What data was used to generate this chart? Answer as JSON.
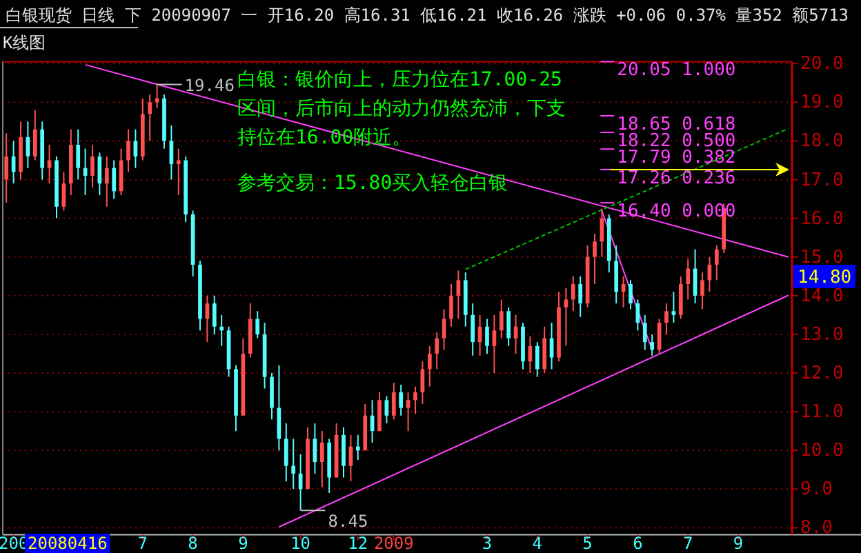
{
  "chart_data": {
    "type": "candlestick",
    "title": "白银现货 日线 下 20090907 一 开16.20 高16.31 低16.21 收16.26 涨跌 +0.06 0.37% 量352 额5713",
    "subtitle": "K线图",
    "categories": [
      null,
      "200",
      null,
      null,
      null,
      null,
      null,
      null,
      null,
      null,
      null,
      null,
      null,
      null,
      null,
      null,
      null,
      null,
      null,
      "7",
      null,
      null,
      null,
      null,
      null,
      null,
      "8",
      null,
      null,
      null,
      null,
      null,
      null,
      "9",
      null,
      null,
      null,
      null,
      null,
      null,
      null,
      "10",
      null,
      null,
      null,
      null,
      null,
      null,
      null,
      "12",
      null,
      null,
      null,
      null,
      "2009",
      null,
      null,
      null,
      null,
      null,
      null,
      null,
      null,
      null,
      null,
      null,
      null,
      "3",
      null,
      null,
      null,
      null,
      null,
      null,
      "4",
      null,
      null,
      null,
      null,
      null,
      null,
      "5",
      null,
      null,
      null,
      null,
      null,
      null,
      "6",
      null,
      null,
      null,
      null,
      null,
      null,
      "7",
      null,
      null,
      null,
      null,
      null,
      null,
      "9",
      null,
      null,
      null,
      null,
      null,
      null,
      null
    ],
    "ohlc": [
      [
        17.0,
        18.2,
        16.4,
        17.6
      ],
      [
        17.6,
        18.0,
        16.9,
        17.2
      ],
      [
        17.2,
        18.5,
        17.0,
        18.1
      ],
      [
        18.1,
        18.5,
        17.3,
        17.6
      ],
      [
        17.6,
        18.8,
        17.5,
        18.3
      ],
      [
        18.3,
        18.5,
        17.0,
        17.3
      ],
      [
        17.3,
        17.9,
        16.9,
        17.5
      ],
      [
        17.5,
        17.6,
        16.0,
        16.3
      ],
      [
        16.3,
        17.2,
        16.2,
        16.9
      ],
      [
        16.9,
        18.3,
        16.6,
        17.9
      ],
      [
        17.9,
        18.3,
        17.0,
        17.3
      ],
      [
        17.3,
        17.8,
        16.6,
        17.1
      ],
      [
        17.1,
        17.9,
        16.8,
        17.6
      ],
      [
        17.6,
        17.7,
        16.6,
        16.9
      ],
      [
        16.9,
        17.6,
        16.3,
        17.3
      ],
      [
        17.3,
        17.5,
        16.5,
        16.7
      ],
      [
        16.7,
        17.8,
        16.6,
        17.5
      ],
      [
        17.5,
        18.3,
        17.2,
        18.0
      ],
      [
        18.0,
        18.3,
        17.3,
        17.6
      ],
      [
        17.6,
        19.1,
        17.5,
        18.7
      ],
      [
        18.7,
        19.2,
        18.0,
        19.0
      ],
      [
        19.0,
        19.46,
        18.85,
        19.1
      ],
      [
        19.1,
        19.2,
        17.8,
        18.0
      ],
      [
        18.0,
        18.4,
        17.0,
        17.4
      ],
      [
        17.4,
        17.8,
        16.6,
        17.5
      ],
      [
        17.5,
        17.6,
        15.9,
        16.1
      ],
      [
        16.1,
        16.2,
        14.5,
        14.8
      ],
      [
        14.8,
        14.9,
        13.1,
        13.4
      ],
      [
        13.4,
        14.0,
        12.8,
        13.8
      ],
      [
        13.8,
        14.0,
        13.0,
        13.2
      ],
      [
        13.2,
        13.5,
        12.7,
        13.1
      ],
      [
        13.1,
        13.2,
        11.9,
        12.1
      ],
      [
        12.1,
        12.2,
        10.5,
        10.9
      ],
      [
        10.9,
        12.9,
        10.9,
        12.5
      ],
      [
        12.5,
        13.8,
        12.4,
        13.4
      ],
      [
        13.4,
        13.6,
        12.9,
        13.0
      ],
      [
        13.0,
        13.3,
        11.6,
        11.9
      ],
      [
        11.9,
        12.0,
        10.8,
        11.1
      ],
      [
        11.1,
        12.2,
        10.0,
        10.3
      ],
      [
        10.3,
        10.7,
        9.2,
        9.6
      ],
      [
        9.6,
        10.3,
        9.0,
        9.4
      ],
      [
        9.4,
        9.9,
        8.45,
        9.0
      ],
      [
        9.0,
        10.6,
        9.0,
        10.3
      ],
      [
        10.3,
        10.7,
        9.4,
        9.7
      ],
      [
        9.7,
        10.5,
        9.05,
        10.2
      ],
      [
        10.2,
        10.3,
        8.9,
        9.3
      ],
      [
        9.3,
        10.7,
        9.3,
        10.4
      ],
      [
        10.4,
        10.6,
        9.3,
        9.6
      ],
      [
        9.6,
        10.4,
        9.2,
        10.1
      ],
      [
        10.1,
        10.4,
        9.75,
        10.0
      ],
      [
        10.0,
        11.2,
        10.0,
        10.9
      ],
      [
        10.9,
        11.3,
        10.2,
        10.5
      ],
      [
        10.5,
        11.5,
        10.5,
        11.3
      ],
      [
        11.3,
        11.4,
        10.7,
        10.9
      ],
      [
        10.9,
        11.75,
        10.8,
        11.5
      ],
      [
        11.5,
        11.7,
        10.9,
        11.1
      ],
      [
        11.1,
        11.5,
        10.5,
        11.3
      ],
      [
        11.3,
        11.65,
        10.95,
        11.5
      ],
      [
        11.5,
        12.3,
        11.2,
        12.1
      ],
      [
        12.1,
        12.7,
        11.65,
        12.5
      ],
      [
        12.5,
        13.05,
        12.1,
        12.9
      ],
      [
        12.9,
        13.65,
        12.6,
        13.4
      ],
      [
        13.4,
        14.3,
        13.2,
        14.0
      ],
      [
        14.0,
        14.65,
        13.4,
        14.4
      ],
      [
        14.4,
        14.6,
        13.2,
        13.5
      ],
      [
        13.5,
        13.8,
        12.45,
        12.8
      ],
      [
        12.8,
        13.5,
        12.45,
        13.2
      ],
      [
        13.2,
        13.4,
        12.5,
        12.7
      ],
      [
        12.7,
        13.5,
        12.0,
        13.1
      ],
      [
        13.1,
        13.9,
        12.9,
        13.6
      ],
      [
        13.6,
        13.7,
        12.7,
        12.9
      ],
      [
        12.9,
        13.5,
        12.5,
        13.2
      ],
      [
        13.2,
        13.3,
        12.1,
        12.3
      ],
      [
        12.3,
        12.95,
        12.0,
        12.7
      ],
      [
        12.7,
        12.8,
        11.9,
        12.1
      ],
      [
        12.1,
        13.2,
        12.0,
        12.9
      ],
      [
        12.9,
        13.3,
        12.1,
        12.4
      ],
      [
        12.4,
        14.1,
        12.3,
        13.7
      ],
      [
        13.7,
        14.2,
        12.7,
        13.9
      ],
      [
        13.9,
        14.5,
        13.6,
        14.3
      ],
      [
        14.3,
        14.5,
        13.45,
        13.8
      ],
      [
        13.8,
        15.3,
        13.7,
        15.0
      ],
      [
        15.0,
        15.6,
        14.3,
        15.4
      ],
      [
        15.4,
        16.25,
        15.0,
        16.0
      ],
      [
        16.0,
        16.1,
        14.6,
        14.9
      ],
      [
        14.9,
        15.3,
        13.8,
        14.1
      ],
      [
        14.1,
        14.5,
        13.7,
        14.3
      ],
      [
        14.3,
        14.4,
        13.65,
        13.8
      ],
      [
        13.8,
        13.9,
        13.1,
        13.3
      ],
      [
        13.3,
        13.5,
        12.6,
        12.8
      ],
      [
        12.8,
        13.0,
        12.45,
        12.6
      ],
      [
        12.6,
        13.4,
        12.5,
        13.3
      ],
      [
        13.3,
        13.8,
        13.0,
        13.6
      ],
      [
        13.6,
        14.1,
        13.3,
        13.5
      ],
      [
        13.5,
        14.5,
        13.4,
        14.3
      ],
      [
        14.3,
        14.95,
        13.9,
        14.7
      ],
      [
        14.7,
        15.2,
        13.8,
        14.0
      ],
      [
        14.0,
        14.6,
        13.65,
        14.4
      ],
      [
        14.4,
        15.0,
        14.1,
        14.8
      ],
      [
        14.8,
        15.3,
        14.4,
        15.2
      ],
      [
        15.2,
        16.38,
        15.1,
        16.26
      ],
      null,
      null,
      null,
      null,
      null,
      null,
      null,
      null,
      null
    ],
    "series": [
      {
        "type": "line",
        "color": "#ff40ff",
        "values": [
          null,
          null,
          null,
          null,
          null,
          null,
          null,
          null,
          null,
          null,
          null,
          19.97,
          null,
          null,
          null,
          null,
          null,
          null,
          null,
          null,
          null,
          null,
          null,
          null,
          null,
          null,
          null,
          null,
          null,
          null,
          null,
          null,
          null,
          null,
          null,
          null,
          null,
          null,
          null,
          null,
          null,
          null,
          null,
          null,
          null,
          null,
          null,
          null,
          null,
          null,
          null,
          null,
          null,
          null,
          null,
          null,
          null,
          null,
          null,
          null,
          null,
          null,
          null,
          null,
          null,
          null,
          null,
          null,
          null,
          null,
          null,
          null,
          null,
          null,
          null,
          null,
          null,
          null,
          null,
          null,
          null,
          null,
          null,
          null,
          null,
          null,
          null,
          null,
          null,
          null,
          null,
          null,
          null,
          null,
          null,
          null,
          null,
          null,
          null,
          null,
          null,
          null,
          null,
          null,
          null,
          null,
          null,
          null,
          null,
          15.0
        ]
      },
      {
        "type": "line",
        "color": "#ff40ff",
        "values": [
          null,
          null,
          null,
          null,
          null,
          null,
          null,
          null,
          null,
          null,
          null,
          null,
          null,
          null,
          null,
          null,
          null,
          null,
          null,
          null,
          null,
          null,
          null,
          null,
          null,
          null,
          null,
          null,
          null,
          null,
          null,
          null,
          null,
          null,
          null,
          null,
          null,
          null,
          8.02,
          null,
          null,
          null,
          null,
          null,
          null,
          null,
          null,
          null,
          null,
          null,
          null,
          null,
          null,
          null,
          null,
          null,
          null,
          null,
          null,
          null,
          null,
          null,
          null,
          null,
          null,
          null,
          null,
          null,
          null,
          null,
          null,
          null,
          null,
          null,
          null,
          null,
          null,
          null,
          null,
          null,
          null,
          null,
          null,
          null,
          null,
          null,
          null,
          null,
          null,
          null,
          null,
          null,
          null,
          null,
          null,
          null,
          null,
          null,
          null,
          null,
          null,
          null,
          null,
          null,
          null,
          null,
          null,
          null,
          null,
          14.01
        ]
      },
      {
        "type": "line",
        "color": "#00c000",
        "line_style": "dashed",
        "values": [
          null,
          null,
          null,
          null,
          null,
          null,
          null,
          null,
          null,
          null,
          null,
          null,
          null,
          null,
          null,
          null,
          null,
          null,
          null,
          null,
          null,
          null,
          null,
          null,
          null,
          null,
          null,
          null,
          null,
          null,
          null,
          null,
          null,
          null,
          null,
          null,
          null,
          null,
          null,
          null,
          null,
          null,
          null,
          null,
          null,
          null,
          null,
          null,
          null,
          null,
          null,
          null,
          null,
          null,
          null,
          null,
          null,
          null,
          null,
          null,
          null,
          null,
          null,
          null,
          14.68,
          null,
          null,
          null,
          null,
          null,
          null,
          null,
          null,
          null,
          null,
          null,
          null,
          null,
          null,
          null,
          null,
          null,
          null,
          null,
          null,
          null,
          null,
          null,
          null,
          null,
          null,
          null,
          null,
          null,
          null,
          null,
          null,
          null,
          null,
          null,
          null,
          null,
          null,
          null,
          null,
          null,
          null,
          null,
          null,
          18.32
        ]
      },
      {
        "type": "line",
        "color": "#ff40ff",
        "values": [
          null,
          null,
          null,
          null,
          null,
          null,
          null,
          null,
          null,
          null,
          null,
          null,
          null,
          null,
          null,
          null,
          null,
          null,
          null,
          null,
          null,
          null,
          null,
          null,
          null,
          null,
          null,
          null,
          null,
          null,
          null,
          null,
          null,
          null,
          null,
          null,
          null,
          null,
          null,
          null,
          null,
          null,
          null,
          null,
          null,
          null,
          null,
          null,
          null,
          null,
          null,
          null,
          null,
          null,
          null,
          null,
          null,
          null,
          null,
          null,
          null,
          null,
          null,
          null,
          null,
          null,
          null,
          null,
          null,
          null,
          null,
          null,
          null,
          null,
          null,
          null,
          null,
          null,
          null,
          null,
          null,
          null,
          null,
          16.19,
          null,
          null,
          null,
          null,
          null,
          null,
          12.6,
          null,
          null,
          null,
          null,
          null,
          null,
          null,
          null,
          null,
          null,
          null,
          null,
          null,
          null,
          null,
          null,
          null,
          null,
          null
        ]
      }
    ],
    "ylim": [
      8,
      20.05
    ],
    "yticks": [
      {
        "value": 8,
        "label": "8.0"
      },
      {
        "value": 9,
        "label": "9.0"
      },
      {
        "value": 10,
        "label": "10.0"
      },
      {
        "value": 11,
        "label": "11.0"
      },
      {
        "value": 12,
        "label": "12.0"
      },
      {
        "value": 13,
        "label": "13.0"
      },
      {
        "value": 14,
        "label": "14.0"
      },
      {
        "value": 15,
        "label": "15.0"
      },
      {
        "value": 16,
        "label": "16.0"
      },
      {
        "value": 17,
        "label": "17.0"
      },
      {
        "value": 18,
        "label": "18.0"
      },
      {
        "value": 19,
        "label": "19.0"
      },
      {
        "value": 20,
        "label": "20.0"
      }
    ],
    "grid": "y",
    "annotations": [
      "白银：银价向上，压力位在17.00-25区间，后市向上的动力仍然充沛，下支持位在16.00附近。",
      "参考交易：15.80买入轻仓白银",
      "20080416",
      "14.80",
      "19.46",
      "8.45",
      "20.05 1.000",
      "18.65 0.618",
      "18.22 0.500",
      "17.79 0.382",
      "17.26 0.236",
      "16.40 0.000"
    ]
  }
}
